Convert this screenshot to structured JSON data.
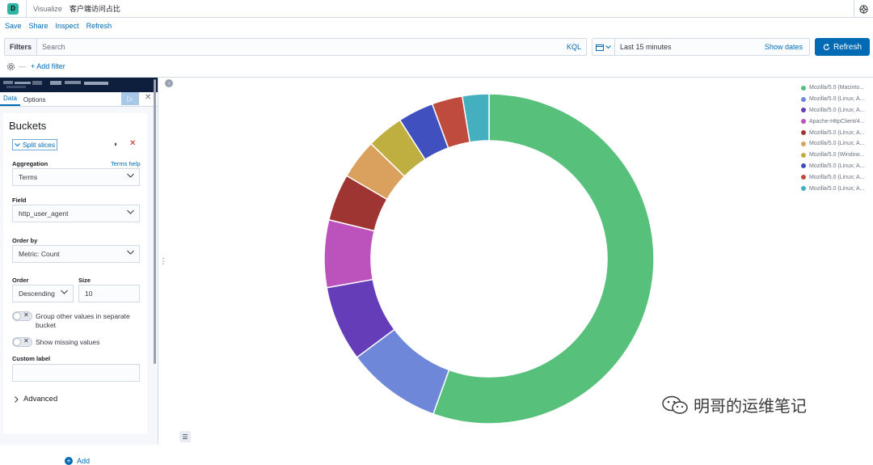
{
  "app": {
    "logo_letter": "D",
    "breadcrumb": [
      "Visualize",
      "客户端访问占比"
    ]
  },
  "menu": [
    "Save",
    "Share",
    "Inspect",
    "Refresh"
  ],
  "query": {
    "filters_label": "Filters",
    "search_placeholder": "Search",
    "search_value": "",
    "kql_label": "KQL"
  },
  "time": {
    "range": "Last 15 minutes",
    "show_dates": "Show dates",
    "refresh_label": "Refresh"
  },
  "filter_bar": {
    "add_filter": "+ Add filter"
  },
  "sidebar": {
    "tabs": [
      "Data",
      "Options"
    ],
    "apply_icon": "play-icon",
    "buckets_title": "Buckets",
    "split_label": "Split slices",
    "aggregation_label": "Aggregation",
    "aggregation_help": "Terms help",
    "aggregation_value": "Terms",
    "field_label": "Field",
    "field_value": "http_user_agent",
    "order_by_label": "Order by",
    "order_by_value": "Metric: Count",
    "order_label": "Order",
    "order_value": "Descending",
    "size_label": "Size",
    "size_value": "10",
    "group_other_label": "Group other values in separate bucket",
    "show_missing_label": "Show missing values",
    "custom_label_label": "Custom label",
    "custom_label_value": "",
    "advanced_label": "Advanced",
    "add_label": "Add"
  },
  "chart_data": {
    "type": "pie",
    "donut": true,
    "series": [
      {
        "name": "Mozilla/5.0 (Macinto...",
        "value": 55.5,
        "color": "#57c17b"
      },
      {
        "name": "Mozilla/5.0 (Linux; A...",
        "value": 9.3,
        "color": "#6f87d8"
      },
      {
        "name": "Mozilla/5.0 (Linux; A...",
        "value": 7.4,
        "color": "#663db8"
      },
      {
        "name": "Apache-HttpClient/4...",
        "value": 6.6,
        "color": "#bc52bc"
      },
      {
        "name": "Mozilla/5.0 (Linux; A...",
        "value": 4.6,
        "color": "#9e3533"
      },
      {
        "name": "Mozilla/5.0 (Linux; A...",
        "value": 3.9,
        "color": "#daa05d"
      },
      {
        "name": "Mozilla/5.0 (Window...",
        "value": 3.6,
        "color": "#bfaf40"
      },
      {
        "name": "Mozilla/5.0 (Linux; A...",
        "value": 3.5,
        "color": "#4050bf"
      },
      {
        "name": "Mozilla/5.0 (Linux; A...",
        "value": 3.0,
        "color": "#bf4b3e"
      },
      {
        "name": "Mozilla/5.0 (Linux; A...",
        "value": 2.6,
        "color": "#44b0bf"
      }
    ],
    "legend_position": "right"
  },
  "watermark": "明哥的运维笔记"
}
